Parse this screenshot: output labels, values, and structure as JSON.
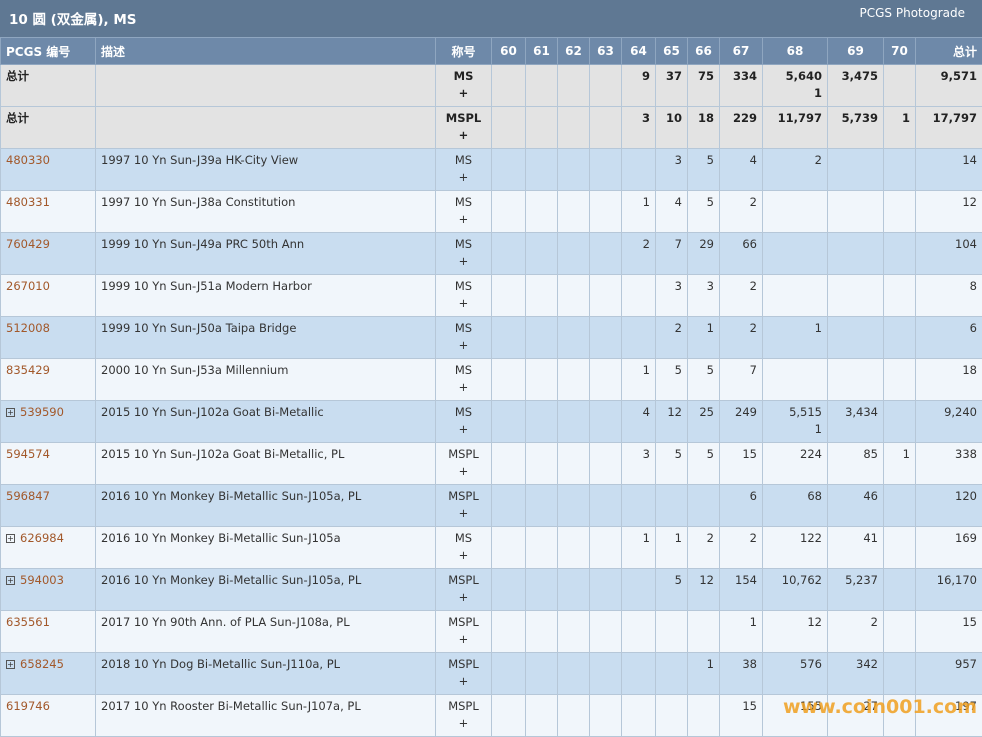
{
  "header": {
    "title": "10 圆 (双金属), MS",
    "right": "PCGS Photograde"
  },
  "table": {
    "columns": [
      "PCGS 编号",
      "描述",
      "称号",
      "60",
      "61",
      "62",
      "63",
      "64",
      "65",
      "66",
      "67",
      "68",
      "69",
      "70",
      "总计"
    ],
    "rows": [
      {
        "cells": [
          "总计",
          null,
          [
            "MS",
            "+"
          ],
          null,
          null,
          null,
          null,
          "9",
          "37",
          "75",
          "334",
          [
            "5,640",
            "1"
          ],
          "3,475",
          null,
          "9,571"
        ],
        "kind": "total"
      },
      {
        "cells": [
          "总计",
          null,
          [
            "MSPL",
            "+"
          ],
          null,
          null,
          null,
          null,
          "3",
          "10",
          "18",
          "229",
          "11,797",
          "5,739",
          "1",
          "17,797"
        ],
        "kind": "total"
      },
      {
        "cells": [
          "480330",
          "1997 10 Yn Sun-J39a HK-City View",
          [
            "MS",
            "+"
          ],
          null,
          null,
          null,
          null,
          null,
          "3",
          "5",
          "4",
          "2",
          null,
          null,
          "14"
        ],
        "expandable": false
      },
      {
        "cells": [
          "480331",
          "1997 10 Yn Sun-J38a Constitution",
          [
            "MS",
            "+"
          ],
          null,
          null,
          null,
          null,
          "1",
          "4",
          "5",
          "2",
          null,
          null,
          null,
          "12"
        ],
        "expandable": false
      },
      {
        "cells": [
          "760429",
          "1999 10 Yn Sun-J49a PRC 50th Ann",
          [
            "MS",
            "+"
          ],
          null,
          null,
          null,
          null,
          "2",
          "7",
          "29",
          "66",
          null,
          null,
          null,
          "104"
        ],
        "expandable": false
      },
      {
        "cells": [
          "267010",
          "1999 10 Yn Sun-J51a Modern Harbor",
          [
            "MS",
            "+"
          ],
          null,
          null,
          null,
          null,
          null,
          "3",
          "3",
          "2",
          null,
          null,
          null,
          "8"
        ],
        "expandable": false
      },
      {
        "cells": [
          "512008",
          "1999 10 Yn Sun-J50a Taipa Bridge",
          [
            "MS",
            "+"
          ],
          null,
          null,
          null,
          null,
          null,
          "2",
          "1",
          "2",
          "1",
          null,
          null,
          "6"
        ],
        "expandable": false
      },
      {
        "cells": [
          "835429",
          "2000 10 Yn Sun-J53a Millennium",
          [
            "MS",
            "+"
          ],
          null,
          null,
          null,
          null,
          "1",
          "5",
          "5",
          "7",
          null,
          null,
          null,
          "18"
        ],
        "expandable": false
      },
      {
        "cells": [
          "539590",
          "2015 10 Yn Sun-J102a Goat Bi-Metallic",
          [
            "MS",
            "+"
          ],
          null,
          null,
          null,
          null,
          "4",
          "12",
          "25",
          "249",
          [
            "5,515",
            "1"
          ],
          "3,434",
          null,
          "9,240"
        ],
        "expandable": true
      },
      {
        "cells": [
          "594574",
          "2015 10 Yn Sun-J102a Goat Bi-Metallic, PL",
          [
            "MSPL",
            "+"
          ],
          null,
          null,
          null,
          null,
          "3",
          "5",
          "5",
          "15",
          "224",
          "85",
          "1",
          "338"
        ],
        "expandable": false
      },
      {
        "cells": [
          "596847",
          "2016 10 Yn Monkey Bi-Metallic Sun-J105a, PL",
          [
            "MSPL",
            "+"
          ],
          null,
          null,
          null,
          null,
          null,
          null,
          null,
          "6",
          "68",
          "46",
          null,
          "120"
        ],
        "expandable": false
      },
      {
        "cells": [
          "626984",
          "2016 10 Yn Monkey Bi-Metallic Sun-J105a",
          [
            "MS",
            "+"
          ],
          null,
          null,
          null,
          null,
          "1",
          "1",
          "2",
          "2",
          "122",
          "41",
          null,
          "169"
        ],
        "expandable": true
      },
      {
        "cells": [
          "594003",
          "2016 10 Yn Monkey Bi-Metallic Sun-J105a, PL",
          [
            "MSPL",
            "+"
          ],
          null,
          null,
          null,
          null,
          null,
          "5",
          "12",
          "154",
          "10,762",
          "5,237",
          null,
          "16,170"
        ],
        "expandable": true
      },
      {
        "cells": [
          "635561",
          "2017 10 Yn 90th Ann. of PLA Sun-J108a, PL",
          [
            "MSPL",
            "+"
          ],
          null,
          null,
          null,
          null,
          null,
          null,
          null,
          "1",
          "12",
          "2",
          null,
          "15"
        ],
        "expandable": false
      },
      {
        "cells": [
          "658245",
          "2018 10 Yn Dog Bi-Metallic Sun-J110a, PL",
          [
            "MSPL",
            "+"
          ],
          null,
          null,
          null,
          null,
          null,
          null,
          "1",
          "38",
          "576",
          "342",
          null,
          "957"
        ],
        "expandable": true
      },
      {
        "cells": [
          "619746",
          "2017 10 Yn Rooster Bi-Metallic Sun-J107a, PL",
          [
            "MSPL",
            "+"
          ],
          null,
          null,
          null,
          null,
          null,
          null,
          null,
          "15",
          "155",
          "27",
          null,
          "197"
        ],
        "expandable": false
      }
    ]
  },
  "watermark": "www.coin001.com"
}
